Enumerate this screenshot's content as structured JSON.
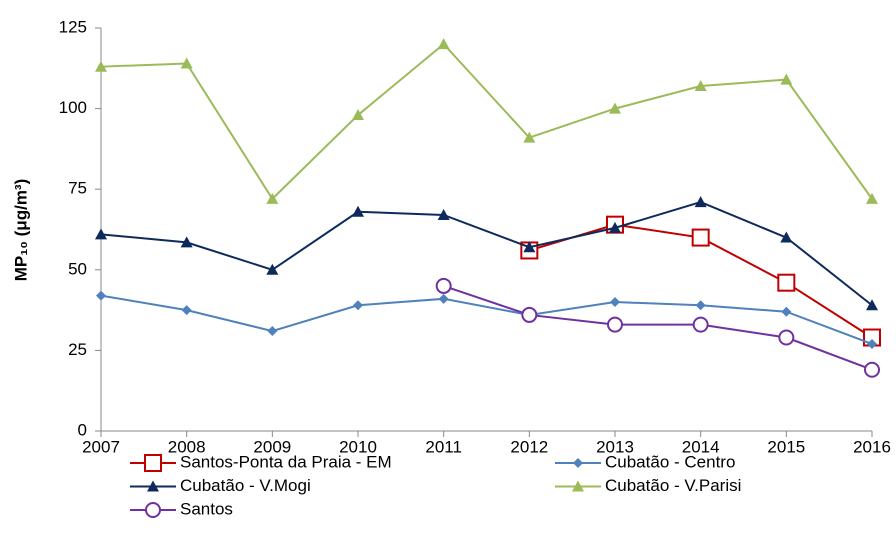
{
  "chart_data": {
    "type": "line",
    "ylabel": "MP₁₀ (μg/m³)",
    "x": [
      2007,
      2008,
      2009,
      2010,
      2011,
      2012,
      2013,
      2014,
      2015,
      2016
    ],
    "xlim": [
      2007,
      2016
    ],
    "xticks": [
      2007,
      2008,
      2009,
      2010,
      2011,
      2012,
      2013,
      2014,
      2015,
      2016
    ],
    "ylim": [
      0,
      125
    ],
    "yticks": [
      0,
      25,
      50,
      75,
      100,
      125
    ],
    "legend": "bottom",
    "series": [
      {
        "name": "Santos-Ponta da Praia - EM",
        "color": "#c00000",
        "marker": "square",
        "values": [
          null,
          null,
          null,
          null,
          null,
          56,
          64,
          60,
          46,
          29
        ]
      },
      {
        "name": "Cubatão - Centro",
        "color": "#4f81bd",
        "marker": "diamond",
        "values": [
          42,
          37.5,
          31,
          39,
          41,
          36,
          40,
          39,
          37,
          27
        ]
      },
      {
        "name": "Cubatão - V.Mogi",
        "color": "#0e2a5c",
        "marker": "triangle",
        "values": [
          61,
          58.5,
          50,
          68,
          67,
          57,
          63,
          71,
          60,
          39
        ]
      },
      {
        "name": "Cubatão - V.Parisi",
        "color": "#9bbb59",
        "marker": "triangle",
        "values": [
          113,
          114,
          72,
          98,
          120,
          91,
          100,
          107,
          109,
          72
        ]
      },
      {
        "name": "Santos",
        "color": "#7030a0",
        "marker": "circle",
        "values": [
          null,
          null,
          null,
          null,
          45,
          36,
          33,
          33,
          29,
          19
        ]
      }
    ]
  }
}
